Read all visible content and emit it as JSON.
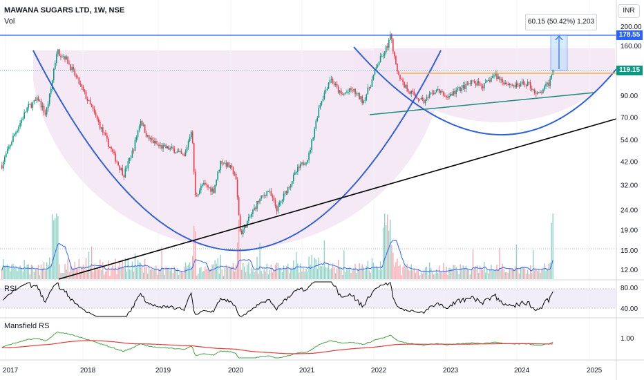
{
  "header": {
    "symbol_line": "MAWANA SUGARS LTD, 1W, NSE",
    "volume_label": "Vol"
  },
  "currency_button": "INR",
  "measure_box": {
    "text": "60.15 (50.42%) 1,203"
  },
  "price_tags": [
    {
      "text": "178.55",
      "value": 178.55,
      "color": "#2962ff"
    },
    {
      "text": "119.15",
      "value": 119.15,
      "color": "#089981"
    }
  ],
  "panes": {
    "rsi_label": "RSI",
    "mansfield_label": "Mansfield RS"
  },
  "chart_data": {
    "type": "candlestick",
    "title": "MAWANA SUGARS LTD, 1W, NSE",
    "y_scale": "log",
    "price_axis_ticks": [
      "200.00",
      "160.00",
      "120.00",
      "90.00",
      "70.00",
      "54.00",
      "42.00",
      "32.00",
      "24.00",
      "19.00",
      "15.00",
      "12.00"
    ],
    "rsi_axis_ticks": [
      "80.00",
      "40.00"
    ],
    "mansfield_axis_ticks": [
      "1.00"
    ],
    "x_axis_labels": [
      "2017",
      "2018",
      "2019",
      "2020",
      "2021",
      "2022",
      "2023",
      "2024",
      "2025"
    ],
    "price_path": [
      [
        2016.95,
        40
      ],
      [
        2017.1,
        55
      ],
      [
        2017.3,
        78
      ],
      [
        2017.45,
        86
      ],
      [
        2017.55,
        72
      ],
      [
        2017.62,
        95
      ],
      [
        2017.7,
        150
      ],
      [
        2017.82,
        140
      ],
      [
        2018.0,
        105
      ],
      [
        2018.2,
        75
      ],
      [
        2018.4,
        52
      ],
      [
        2018.55,
        40
      ],
      [
        2018.62,
        36
      ],
      [
        2018.75,
        48
      ],
      [
        2018.85,
        68
      ],
      [
        2018.95,
        55
      ],
      [
        2019.1,
        50
      ],
      [
        2019.3,
        48
      ],
      [
        2019.45,
        44
      ],
      [
        2019.55,
        62
      ],
      [
        2019.6,
        28
      ],
      [
        2019.7,
        32
      ],
      [
        2019.85,
        30
      ],
      [
        2019.95,
        42
      ],
      [
        2020.05,
        40
      ],
      [
        2020.15,
        36
      ],
      [
        2020.22,
        18
      ],
      [
        2020.35,
        22
      ],
      [
        2020.45,
        26
      ],
      [
        2020.6,
        30
      ],
      [
        2020.72,
        24
      ],
      [
        2020.85,
        30
      ],
      [
        2021.0,
        38
      ],
      [
        2021.15,
        44
      ],
      [
        2021.3,
        80
      ],
      [
        2021.45,
        110
      ],
      [
        2021.6,
        90
      ],
      [
        2021.75,
        96
      ],
      [
        2021.9,
        84
      ],
      [
        2022.0,
        102
      ],
      [
        2022.1,
        130
      ],
      [
        2022.2,
        150
      ],
      [
        2022.28,
        180
      ],
      [
        2022.35,
        125
      ],
      [
        2022.45,
        102
      ],
      [
        2022.6,
        90
      ],
      [
        2022.75,
        84
      ],
      [
        2022.9,
        96
      ],
      [
        2023.05,
        88
      ],
      [
        2023.2,
        96
      ],
      [
        2023.4,
        104
      ],
      [
        2023.55,
        100
      ],
      [
        2023.7,
        114
      ],
      [
        2023.85,
        104
      ],
      [
        2024.0,
        100
      ],
      [
        2024.15,
        104
      ],
      [
        2024.3,
        90
      ],
      [
        2024.45,
        104
      ],
      [
        2024.5,
        124
      ]
    ],
    "annotations": {
      "resistance_line": 178.55,
      "breakout_line": 119.15,
      "measure": {
        "change": 60.15,
        "percent": 50.42,
        "bars": 1203
      },
      "patterns": [
        "cup-and-handle",
        "rising-trendline",
        "rising-handle-support"
      ]
    },
    "indicators": [
      "Vol",
      "RSI",
      "Mansfield RS"
    ]
  }
}
